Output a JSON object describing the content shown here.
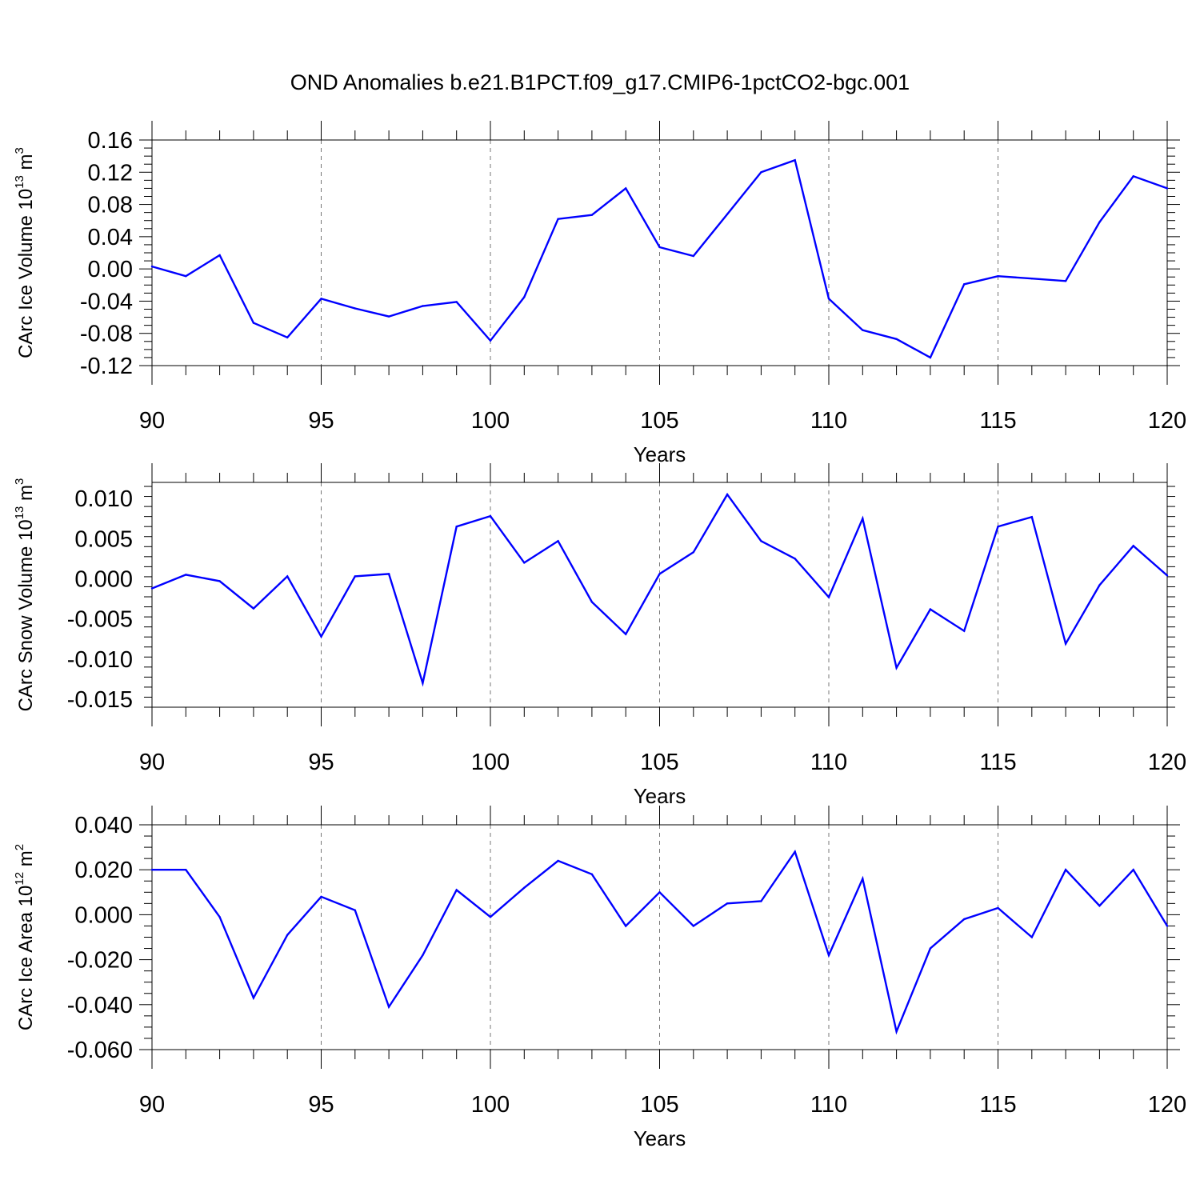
{
  "title": "OND Anomalies b.e21.B1PCT.f09_g17.CMIP6-1pctCO2-bgc.001",
  "colors": {
    "series": "#0000ff",
    "grid": "#777777",
    "axis": "#000000"
  },
  "chart_data": [
    {
      "type": "line",
      "title": "OND Anomalies b.e21.B1PCT.f09_g17.CMIP6-1pctCO2-bgc.001",
      "xlabel": "Years",
      "ylabel": {
        "main": "CArc Ice Volume 10",
        "exp": "13",
        "unit": "m",
        "unit_exp": "3"
      },
      "xlim": [
        90,
        120
      ],
      "ylim": [
        -0.12,
        0.16
      ],
      "x_ticks": [
        "90",
        "95",
        "100",
        "105",
        "110",
        "115",
        "120"
      ],
      "y_ticks": [
        "-0.12",
        "-0.08",
        "-0.04",
        "0.00",
        "0.04",
        "0.08",
        "0.12",
        "0.16"
      ],
      "y_tick_values": [
        -0.12,
        -0.08,
        -0.04,
        0.0,
        0.04,
        0.08,
        0.12,
        0.16
      ],
      "grid_x": [
        95,
        100,
        105,
        110,
        115
      ],
      "x": [
        90,
        91,
        92,
        93,
        94,
        95,
        96,
        97,
        98,
        99,
        100,
        101,
        102,
        103,
        104,
        105,
        106,
        107,
        108,
        109,
        110,
        111,
        112,
        113,
        114,
        115,
        116,
        117,
        118,
        119,
        120
      ],
      "values": [
        0.003,
        -0.009,
        0.017,
        -0.067,
        -0.085,
        -0.037,
        -0.049,
        -0.059,
        -0.046,
        -0.041,
        -0.089,
        -0.035,
        0.062,
        0.067,
        0.1,
        0.027,
        0.016,
        0.068,
        0.12,
        0.135,
        -0.037,
        -0.076,
        -0.087,
        -0.11,
        -0.019,
        -0.009,
        -0.012,
        -0.015,
        0.058,
        0.115,
        0.1
      ]
    },
    {
      "type": "line",
      "xlabel": "Years",
      "ylabel": {
        "main": "CArc Snow Volume 10",
        "exp": "13",
        "unit": "m",
        "unit_exp": "3"
      },
      "xlim": [
        90,
        120
      ],
      "ylim": [
        -0.016,
        0.012
      ],
      "x_ticks": [
        "90",
        "95",
        "100",
        "105",
        "110",
        "115",
        "120"
      ],
      "y_ticks": [
        "-0.015",
        "-0.010",
        "-0.005",
        "0.000",
        "0.005",
        "0.010"
      ],
      "y_tick_values": [
        -0.015,
        -0.01,
        -0.005,
        0.0,
        0.005,
        0.01
      ],
      "grid_x": [
        95,
        100,
        105,
        110,
        115
      ],
      "x": [
        90,
        91,
        92,
        93,
        94,
        95,
        96,
        97,
        98,
        99,
        100,
        101,
        102,
        103,
        104,
        105,
        106,
        107,
        108,
        109,
        110,
        111,
        112,
        113,
        114,
        115,
        116,
        117,
        118,
        119,
        120
      ],
      "values": [
        -0.0012,
        0.0005,
        -0.0003,
        -0.0037,
        0.0003,
        -0.0072,
        0.0003,
        0.0006,
        -0.013,
        0.0065,
        0.0078,
        0.002,
        0.0047,
        -0.0029,
        -0.0069,
        0.0006,
        0.0033,
        0.0105,
        0.0047,
        0.0025,
        -0.0023,
        0.0075,
        -0.0111,
        -0.0038,
        -0.0065,
        0.0065,
        0.0077,
        -0.0081,
        -0.0008,
        0.0041,
        0.0004
      ]
    },
    {
      "type": "line",
      "xlabel": "Years",
      "ylabel": {
        "main": "CArc Ice Area 10",
        "exp": "12",
        "unit": "m",
        "unit_exp": "2"
      },
      "xlim": [
        90,
        120
      ],
      "ylim": [
        -0.06,
        0.04
      ],
      "x_ticks": [
        "90",
        "95",
        "100",
        "105",
        "110",
        "115",
        "120"
      ],
      "y_ticks": [
        "-0.060",
        "-0.040",
        "-0.020",
        "0.000",
        "0.020",
        "0.040"
      ],
      "y_tick_values": [
        -0.06,
        -0.04,
        -0.02,
        0.0,
        0.02,
        0.04
      ],
      "grid_x": [
        95,
        100,
        105,
        110,
        115
      ],
      "x": [
        90,
        91,
        92,
        93,
        94,
        95,
        96,
        97,
        98,
        99,
        100,
        101,
        102,
        103,
        104,
        105,
        106,
        107,
        108,
        109,
        110,
        111,
        112,
        113,
        114,
        115,
        116,
        117,
        118,
        119,
        120
      ],
      "values": [
        0.02,
        0.02,
        -0.001,
        -0.037,
        -0.009,
        0.008,
        0.002,
        -0.041,
        -0.018,
        0.011,
        -0.001,
        0.012,
        0.024,
        0.018,
        -0.005,
        0.01,
        -0.005,
        0.005,
        0.006,
        0.028,
        -0.018,
        0.016,
        -0.052,
        -0.015,
        -0.002,
        0.003,
        -0.01,
        0.02,
        0.004,
        0.02,
        -0.005
      ]
    }
  ]
}
